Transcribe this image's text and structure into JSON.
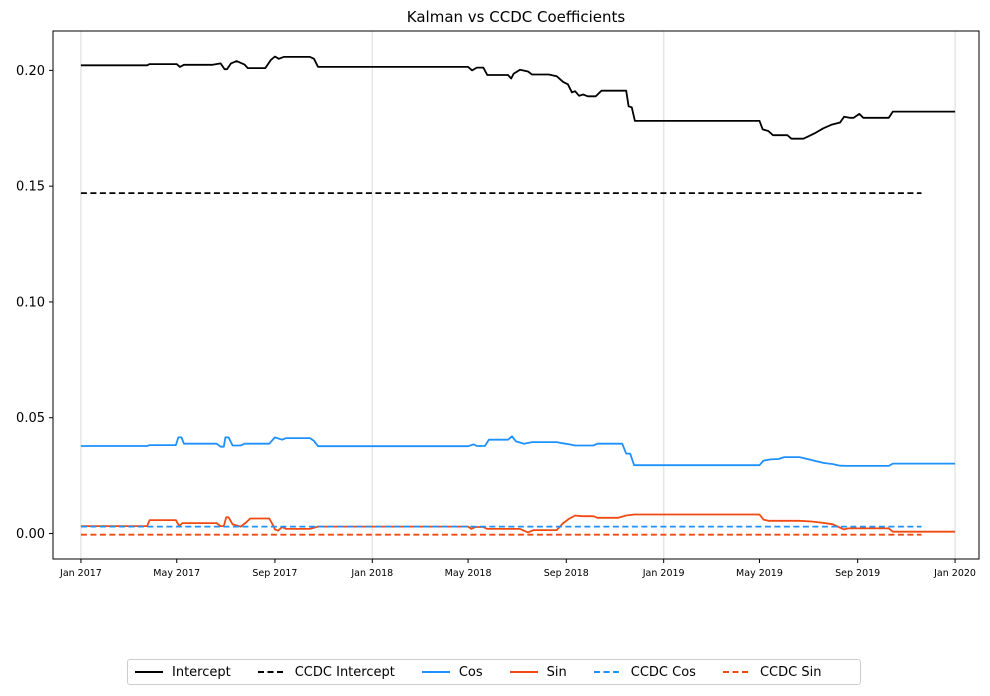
{
  "chart_data": {
    "type": "line",
    "title": "Kalman vs CCDC Coefficients",
    "xlabel": "",
    "ylabel": "",
    "ylim": [
      -0.011,
      0.217
    ],
    "xlim": [
      "2016-11-27",
      "2020-01-31"
    ],
    "grid": "vertical lines at yearly ticks",
    "legend_position": "bottom-center",
    "x_ticks": [
      {
        "date": "2017-01-01",
        "label": "Jan 2017"
      },
      {
        "date": "2017-05-01",
        "label": "May 2017"
      },
      {
        "date": "2017-09-01",
        "label": "Sep 2017"
      },
      {
        "date": "2018-01-01",
        "label": "Jan 2018"
      },
      {
        "date": "2018-05-01",
        "label": "May 2018"
      },
      {
        "date": "2018-09-01",
        "label": "Sep 2018"
      },
      {
        "date": "2019-01-01",
        "label": "Jan 2019"
      },
      {
        "date": "2019-05-01",
        "label": "May 2019"
      },
      {
        "date": "2019-09-01",
        "label": "Sep 2019"
      },
      {
        "date": "2020-01-01",
        "label": "Jan 2020"
      }
    ],
    "y_ticks": [
      {
        "value": 0.0,
        "label": "0.00"
      },
      {
        "value": 0.05,
        "label": "0.05"
      },
      {
        "value": 0.1,
        "label": "0.10"
      },
      {
        "value": 0.15,
        "label": "0.15"
      },
      {
        "value": 0.2,
        "label": "0.20"
      }
    ],
    "series": [
      {
        "name": "Intercept",
        "color": "#000000",
        "style": "solid",
        "points": [
          [
            "2017-01-01",
            0.2022
          ],
          [
            "2017-03-25",
            0.2022
          ],
          [
            "2017-03-28",
            0.2027
          ],
          [
            "2017-05-01",
            0.2027
          ],
          [
            "2017-05-05",
            0.2015
          ],
          [
            "2017-05-10",
            0.2024
          ],
          [
            "2017-06-15",
            0.2024
          ],
          [
            "2017-06-25",
            0.203
          ],
          [
            "2017-06-30",
            0.2005
          ],
          [
            "2017-07-03",
            0.2005
          ],
          [
            "2017-07-08",
            0.203
          ],
          [
            "2017-07-15",
            0.204
          ],
          [
            "2017-07-25",
            0.2025
          ],
          [
            "2017-07-29",
            0.201
          ],
          [
            "2017-08-20",
            0.201
          ],
          [
            "2017-08-27",
            0.2045
          ],
          [
            "2017-09-01",
            0.206
          ],
          [
            "2017-09-06",
            0.205
          ],
          [
            "2017-09-12",
            0.2058
          ],
          [
            "2017-10-15",
            0.2058
          ],
          [
            "2017-10-20",
            0.205
          ],
          [
            "2017-10-25",
            0.2015
          ],
          [
            "2018-05-01",
            0.2015
          ],
          [
            "2018-05-06",
            0.2
          ],
          [
            "2018-05-12",
            0.2012
          ],
          [
            "2018-05-20",
            0.2012
          ],
          [
            "2018-05-25",
            0.198
          ],
          [
            "2018-06-20",
            0.198
          ],
          [
            "2018-06-24",
            0.1965
          ],
          [
            "2018-06-27",
            0.1985
          ],
          [
            "2018-07-05",
            0.2003
          ],
          [
            "2018-07-15",
            0.1995
          ],
          [
            "2018-07-20",
            0.1982
          ],
          [
            "2018-08-10",
            0.1982
          ],
          [
            "2018-08-20",
            0.1975
          ],
          [
            "2018-08-28",
            0.195
          ],
          [
            "2018-09-03",
            0.194
          ],
          [
            "2018-09-08",
            0.1905
          ],
          [
            "2018-09-12",
            0.191
          ],
          [
            "2018-09-17",
            0.189
          ],
          [
            "2018-09-22",
            0.1896
          ],
          [
            "2018-09-28",
            0.1888
          ],
          [
            "2018-10-08",
            0.1888
          ],
          [
            "2018-10-15",
            0.1912
          ],
          [
            "2018-11-15",
            0.1912
          ],
          [
            "2018-11-18",
            0.1845
          ],
          [
            "2018-11-22",
            0.184
          ],
          [
            "2018-11-26",
            0.1782
          ],
          [
            "2019-05-01",
            0.1782
          ],
          [
            "2019-05-05",
            0.1745
          ],
          [
            "2019-05-12",
            0.1738
          ],
          [
            "2019-05-18",
            0.172
          ],
          [
            "2019-06-05",
            0.172
          ],
          [
            "2019-06-10",
            0.1705
          ],
          [
            "2019-06-25",
            0.1705
          ],
          [
            "2019-07-01",
            0.1715
          ],
          [
            "2019-07-10",
            0.173
          ],
          [
            "2019-07-20",
            0.175
          ],
          [
            "2019-07-30",
            0.1765
          ],
          [
            "2019-08-10",
            0.1775
          ],
          [
            "2019-08-15",
            0.18
          ],
          [
            "2019-08-22",
            0.1795
          ],
          [
            "2019-08-27",
            0.1795
          ],
          [
            "2019-09-03",
            0.1812
          ],
          [
            "2019-09-08",
            0.1795
          ],
          [
            "2019-09-15",
            0.1795
          ],
          [
            "2019-10-10",
            0.1795
          ],
          [
            "2019-10-15",
            0.1822
          ],
          [
            "2020-01-01",
            0.1822
          ]
        ]
      },
      {
        "name": "CCDC Intercept",
        "color": "#000000",
        "style": "dashed",
        "points": [
          [
            "2017-01-01",
            0.147
          ],
          [
            "2019-11-20",
            0.147
          ]
        ]
      },
      {
        "name": "Cos",
        "color": "#1e90ff",
        "style": "solid",
        "points": [
          [
            "2017-01-01",
            0.0378
          ],
          [
            "2017-03-25",
            0.0378
          ],
          [
            "2017-03-28",
            0.0382
          ],
          [
            "2017-04-30",
            0.0382
          ],
          [
            "2017-05-03",
            0.0415
          ],
          [
            "2017-05-07",
            0.0415
          ],
          [
            "2017-05-10",
            0.0388
          ],
          [
            "2017-06-20",
            0.0388
          ],
          [
            "2017-06-25",
            0.0375
          ],
          [
            "2017-06-29",
            0.0375
          ],
          [
            "2017-07-01",
            0.0415
          ],
          [
            "2017-07-05",
            0.0415
          ],
          [
            "2017-07-10",
            0.038
          ],
          [
            "2017-07-20",
            0.038
          ],
          [
            "2017-07-25",
            0.0388
          ],
          [
            "2017-08-25",
            0.0388
          ],
          [
            "2017-09-01",
            0.0415
          ],
          [
            "2017-09-10",
            0.0405
          ],
          [
            "2017-09-15",
            0.0412
          ],
          [
            "2017-10-15",
            0.0412
          ],
          [
            "2017-10-20",
            0.04
          ],
          [
            "2017-10-25",
            0.0377
          ],
          [
            "2018-05-01",
            0.0377
          ],
          [
            "2018-05-08",
            0.0385
          ],
          [
            "2018-05-12",
            0.0378
          ],
          [
            "2018-05-22",
            0.0378
          ],
          [
            "2018-05-27",
            0.0405
          ],
          [
            "2018-06-20",
            0.0405
          ],
          [
            "2018-06-25",
            0.042
          ],
          [
            "2018-06-30",
            0.0398
          ],
          [
            "2018-07-10",
            0.0388
          ],
          [
            "2018-07-20",
            0.0395
          ],
          [
            "2018-08-20",
            0.0395
          ],
          [
            "2018-08-27",
            0.039
          ],
          [
            "2018-09-05",
            0.0385
          ],
          [
            "2018-09-12",
            0.038
          ],
          [
            "2018-10-05",
            0.038
          ],
          [
            "2018-10-10",
            0.0388
          ],
          [
            "2018-11-10",
            0.0388
          ],
          [
            "2018-11-15",
            0.0345
          ],
          [
            "2018-11-20",
            0.0345
          ],
          [
            "2018-11-25",
            0.0295
          ],
          [
            "2019-05-01",
            0.0295
          ],
          [
            "2019-05-06",
            0.0315
          ],
          [
            "2019-05-15",
            0.032
          ],
          [
            "2019-05-25",
            0.0322
          ],
          [
            "2019-06-01",
            0.033
          ],
          [
            "2019-06-20",
            0.033
          ],
          [
            "2019-06-30",
            0.0322
          ],
          [
            "2019-07-10",
            0.0313
          ],
          [
            "2019-07-20",
            0.0305
          ],
          [
            "2019-08-01",
            0.03
          ],
          [
            "2019-08-10",
            0.0293
          ],
          [
            "2019-08-20",
            0.0292
          ],
          [
            "2019-10-10",
            0.0292
          ],
          [
            "2019-10-15",
            0.0302
          ],
          [
            "2020-01-01",
            0.0302
          ]
        ]
      },
      {
        "name": "Sin",
        "color": "#f04a12",
        "style": "solid",
        "points": [
          [
            "2017-01-01",
            0.0032
          ],
          [
            "2017-03-25",
            0.0032
          ],
          [
            "2017-03-28",
            0.0058
          ],
          [
            "2017-04-30",
            0.0058
          ],
          [
            "2017-05-04",
            0.0032
          ],
          [
            "2017-05-08",
            0.0045
          ],
          [
            "2017-06-20",
            0.0045
          ],
          [
            "2017-06-25",
            0.0032
          ],
          [
            "2017-06-29",
            0.0032
          ],
          [
            "2017-07-02",
            0.007
          ],
          [
            "2017-07-05",
            0.007
          ],
          [
            "2017-07-10",
            0.004
          ],
          [
            "2017-07-20",
            0.003
          ],
          [
            "2017-07-27",
            0.0048
          ],
          [
            "2017-08-01",
            0.0065
          ],
          [
            "2017-08-25",
            0.0065
          ],
          [
            "2017-08-29",
            0.004
          ],
          [
            "2017-09-01",
            0.0018
          ],
          [
            "2017-09-05",
            0.0012
          ],
          [
            "2017-09-10",
            0.0028
          ],
          [
            "2017-09-15",
            0.002
          ],
          [
            "2017-10-15",
            0.002
          ],
          [
            "2017-10-25",
            0.003
          ],
          [
            "2018-05-01",
            0.003
          ],
          [
            "2018-05-05",
            0.002
          ],
          [
            "2018-05-10",
            0.0028
          ],
          [
            "2018-05-20",
            0.0028
          ],
          [
            "2018-05-25",
            0.002
          ],
          [
            "2018-07-05",
            0.002
          ],
          [
            "2018-07-15",
            0.0005
          ],
          [
            "2018-07-22",
            0.0015
          ],
          [
            "2018-08-20",
            0.0015
          ],
          [
            "2018-08-28",
            0.0045
          ],
          [
            "2018-09-05",
            0.0065
          ],
          [
            "2018-09-12",
            0.0078
          ],
          [
            "2018-09-20",
            0.0075
          ],
          [
            "2018-10-05",
            0.0075
          ],
          [
            "2018-10-10",
            0.0068
          ],
          [
            "2018-11-05",
            0.0068
          ],
          [
            "2018-11-15",
            0.0078
          ],
          [
            "2018-11-25",
            0.0082
          ],
          [
            "2019-05-01",
            0.0082
          ],
          [
            "2019-05-06",
            0.006
          ],
          [
            "2019-05-12",
            0.0055
          ],
          [
            "2019-06-20",
            0.0055
          ],
          [
            "2019-07-05",
            0.0052
          ],
          [
            "2019-07-20",
            0.0046
          ],
          [
            "2019-08-01",
            0.004
          ],
          [
            "2019-08-10",
            0.0025
          ],
          [
            "2019-08-15",
            0.0018
          ],
          [
            "2019-08-20",
            0.0022
          ],
          [
            "2019-10-10",
            0.0022
          ],
          [
            "2019-10-15",
            0.0008
          ],
          [
            "2020-01-01",
            0.0008
          ]
        ]
      },
      {
        "name": "CCDC Cos",
        "color": "#1e90ff",
        "style": "dashed",
        "points": [
          [
            "2017-01-01",
            0.003
          ],
          [
            "2019-11-20",
            0.003
          ]
        ]
      },
      {
        "name": "CCDC Sin",
        "color": "#f04a12",
        "style": "dashed",
        "points": [
          [
            "2017-01-01",
            -0.0005
          ],
          [
            "2019-11-20",
            -0.0005
          ]
        ]
      }
    ]
  }
}
